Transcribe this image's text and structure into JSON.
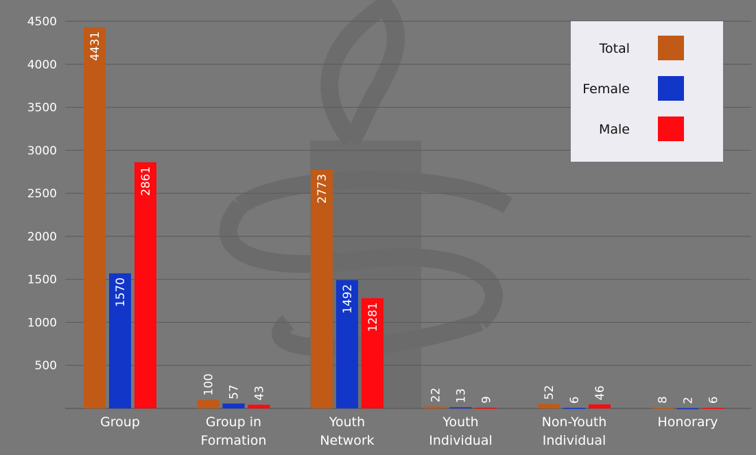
{
  "chart_data": {
    "type": "bar",
    "categories": [
      [
        "Group"
      ],
      [
        "Group in",
        "Formation"
      ],
      [
        "Youth",
        "Network"
      ],
      [
        "Youth",
        "Individual"
      ],
      [
        "Non-Youth",
        "Individual"
      ],
      [
        "Honorary"
      ]
    ],
    "series": [
      {
        "name": "Total",
        "color": "#c15a17",
        "values": [
          4431,
          100,
          2773,
          22,
          52,
          8
        ]
      },
      {
        "name": "Female",
        "color": "#1236c8",
        "values": [
          1570,
          57,
          1492,
          13,
          6,
          2
        ]
      },
      {
        "name": "Male",
        "color": "#ff0a10",
        "values": [
          2861,
          43,
          1281,
          9,
          46,
          6
        ]
      }
    ],
    "yticks": [
      500,
      1000,
      1500,
      2000,
      2500,
      3000,
      3500,
      4000,
      4500
    ],
    "ylim": [
      0,
      4500
    ],
    "grid": true,
    "legend_position": "top-right",
    "title": "",
    "xlabel": "",
    "ylabel": ""
  }
}
